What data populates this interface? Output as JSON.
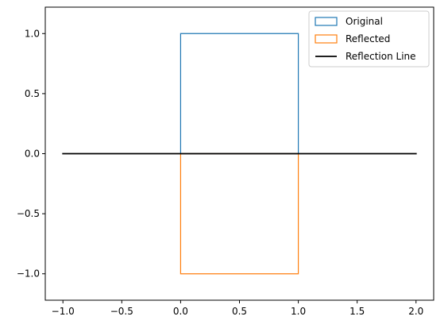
{
  "chart_data": {
    "type": "line",
    "title": "",
    "xlabel": "",
    "ylabel": "",
    "xlim": [
      -1.15,
      2.15
    ],
    "ylim": [
      -1.22,
      1.22
    ],
    "x_ticks": [
      -1.0,
      -0.5,
      0.0,
      0.5,
      1.0,
      1.5,
      2.0
    ],
    "x_tick_labels": [
      "−1.0",
      "−0.5",
      "0.0",
      "0.5",
      "1.0",
      "1.5",
      "2.0"
    ],
    "y_ticks": [
      1.0,
      0.5,
      0.0,
      -0.5,
      -1.0
    ],
    "y_tick_labels": [
      "1.0",
      "0.5",
      "0.0",
      "−0.5",
      "−1.0"
    ],
    "grid": false,
    "legend_position": "top-right",
    "series": [
      {
        "name": "Original",
        "kind": "polygon",
        "color": "#1f77b4",
        "points": [
          [
            0,
            0
          ],
          [
            1,
            0
          ],
          [
            1,
            1
          ],
          [
            0,
            1
          ]
        ]
      },
      {
        "name": "Reflected",
        "kind": "polygon",
        "color": "#ff7f0e",
        "points": [
          [
            0,
            0
          ],
          [
            1,
            0
          ],
          [
            1,
            -1
          ],
          [
            0,
            -1
          ]
        ]
      },
      {
        "name": "Reflection Line",
        "kind": "line",
        "color": "#000000",
        "points": [
          [
            -1,
            0
          ],
          [
            2,
            0
          ]
        ]
      }
    ]
  }
}
